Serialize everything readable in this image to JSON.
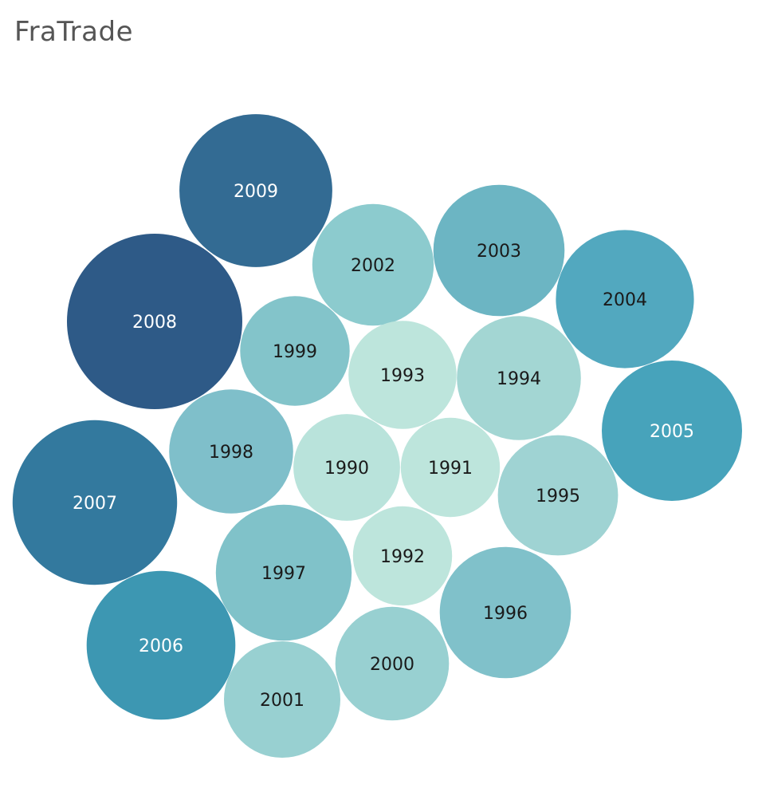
{
  "title": "FraTrade",
  "chart_data": {
    "type": "packed-bubble",
    "title": "FraTrade",
    "size_and_color_measure": "FraTrade (relative magnitude, unlabeled)",
    "bubbles": [
      {
        "label": "2008",
        "value": 100,
        "color": "#2e5a87"
      },
      {
        "label": "2007",
        "value": 88,
        "color": "#33799e"
      },
      {
        "label": "2009",
        "value": 76,
        "color": "#336b93"
      },
      {
        "label": "2006",
        "value": 72,
        "color": "#3d97b2"
      },
      {
        "label": "2005",
        "value": 64,
        "color": "#47a3bb"
      },
      {
        "label": "2004",
        "value": 62,
        "color": "#52a8bf"
      },
      {
        "label": "1997",
        "value": 60,
        "color": "#80c2c9"
      },
      {
        "label": "2003",
        "value": 56,
        "color": "#6cb5c3"
      },
      {
        "label": "1996",
        "value": 56,
        "color": "#80c1ca"
      },
      {
        "label": "1998",
        "value": 50,
        "color": "#7fbfca"
      },
      {
        "label": "1994",
        "value": 50,
        "color": "#a3d6d3"
      },
      {
        "label": "2002",
        "value": 48,
        "color": "#8ccbce"
      },
      {
        "label": "1995",
        "value": 47,
        "color": "#9fd3d3"
      },
      {
        "label": "2001",
        "value": 44,
        "color": "#98d0d1"
      },
      {
        "label": "1993",
        "value": 38,
        "color": "#bde5dc"
      },
      {
        "label": "1999",
        "value": 39,
        "color": "#83c4ca"
      },
      {
        "label": "2000",
        "value": 42,
        "color": "#98d0d1"
      },
      {
        "label": "1990",
        "value": 37,
        "color": "#b9e3db"
      },
      {
        "label": "1991",
        "value": 32,
        "color": "#bde5dc"
      },
      {
        "label": "1992",
        "value": 32,
        "color": "#bde5dc"
      }
    ]
  }
}
